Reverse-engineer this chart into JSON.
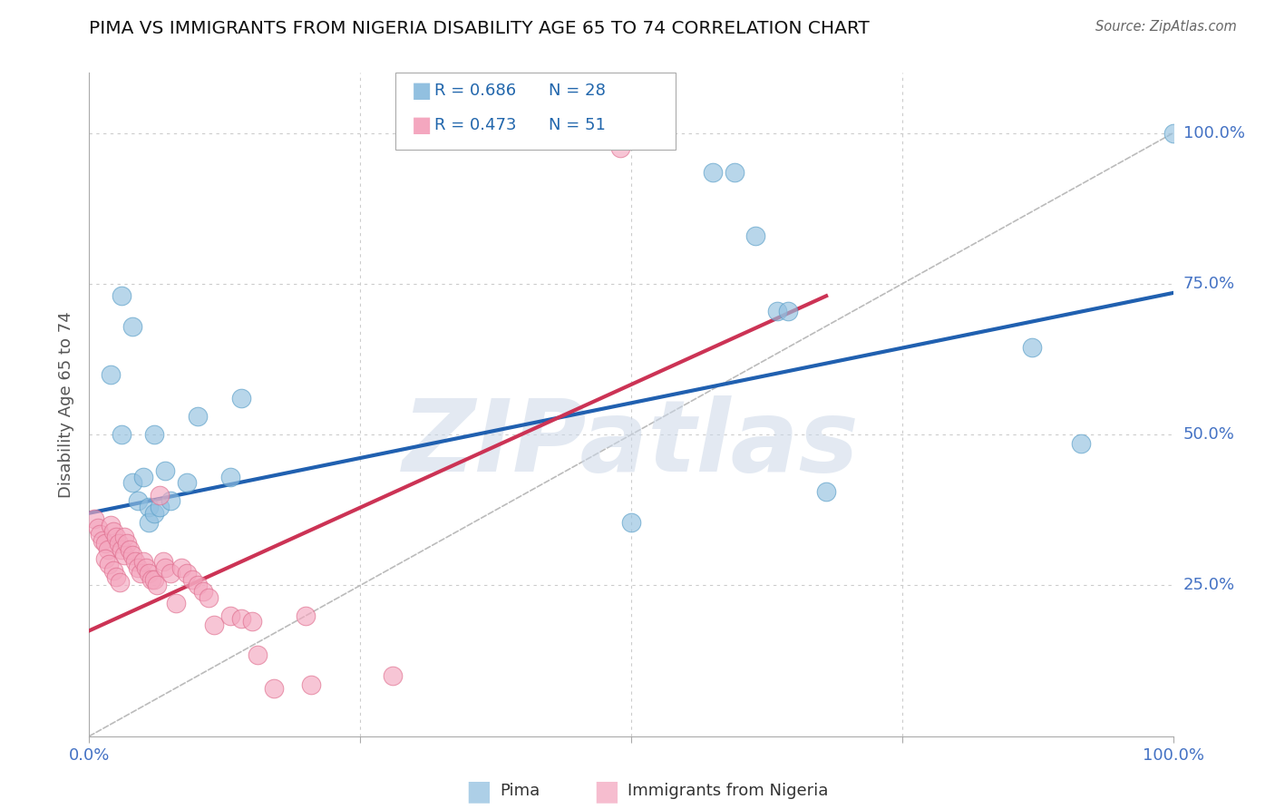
{
  "title": "PIMA VS IMMIGRANTS FROM NIGERIA DISABILITY AGE 65 TO 74 CORRELATION CHART",
  "source": "Source: ZipAtlas.com",
  "ylabel": "Disability Age 65 to 74",
  "watermark": "ZIPatlas",
  "legend_blue_R": "R = 0.686",
  "legend_blue_N": "N = 28",
  "legend_pink_R": "R = 0.473",
  "legend_pink_N": "N = 51",
  "blue_color": "#92c0e0",
  "blue_edge": "#5a9fc8",
  "pink_color": "#f4a7bf",
  "pink_edge": "#e07090",
  "blue_line_color": "#2060b0",
  "pink_line_color": "#cc3355",
  "diag_line_color": "#bbbbbb",
  "blue_points": [
    [
      0.02,
      0.6
    ],
    [
      0.03,
      0.73
    ],
    [
      0.04,
      0.68
    ],
    [
      0.04,
      0.42
    ],
    [
      0.045,
      0.39
    ],
    [
      0.05,
      0.43
    ],
    [
      0.055,
      0.38
    ],
    [
      0.055,
      0.355
    ],
    [
      0.06,
      0.37
    ],
    [
      0.065,
      0.38
    ],
    [
      0.07,
      0.44
    ],
    [
      0.075,
      0.39
    ],
    [
      0.09,
      0.42
    ],
    [
      0.1,
      0.53
    ],
    [
      0.13,
      0.43
    ],
    [
      0.14,
      0.56
    ],
    [
      0.5,
      0.355
    ],
    [
      0.575,
      0.935
    ],
    [
      0.595,
      0.935
    ],
    [
      0.615,
      0.83
    ],
    [
      0.635,
      0.705
    ],
    [
      0.645,
      0.705
    ],
    [
      0.68,
      0.405
    ],
    [
      0.87,
      0.645
    ],
    [
      0.915,
      0.485
    ],
    [
      1.0,
      1.0
    ],
    [
      0.03,
      0.5
    ],
    [
      0.06,
      0.5
    ]
  ],
  "pink_points": [
    [
      0.49,
      0.975
    ],
    [
      0.005,
      0.36
    ],
    [
      0.008,
      0.345
    ],
    [
      0.01,
      0.335
    ],
    [
      0.012,
      0.325
    ],
    [
      0.015,
      0.32
    ],
    [
      0.017,
      0.31
    ],
    [
      0.02,
      0.35
    ],
    [
      0.022,
      0.34
    ],
    [
      0.025,
      0.33
    ],
    [
      0.027,
      0.32
    ],
    [
      0.03,
      0.31
    ],
    [
      0.032,
      0.3
    ],
    [
      0.015,
      0.295
    ],
    [
      0.018,
      0.285
    ],
    [
      0.022,
      0.275
    ],
    [
      0.025,
      0.265
    ],
    [
      0.028,
      0.255
    ],
    [
      0.032,
      0.33
    ],
    [
      0.035,
      0.32
    ],
    [
      0.037,
      0.31
    ],
    [
      0.04,
      0.3
    ],
    [
      0.042,
      0.29
    ],
    [
      0.045,
      0.28
    ],
    [
      0.047,
      0.27
    ],
    [
      0.05,
      0.29
    ],
    [
      0.052,
      0.28
    ],
    [
      0.055,
      0.27
    ],
    [
      0.057,
      0.26
    ],
    [
      0.06,
      0.26
    ],
    [
      0.062,
      0.25
    ],
    [
      0.065,
      0.4
    ],
    [
      0.068,
      0.29
    ],
    [
      0.07,
      0.28
    ],
    [
      0.075,
      0.27
    ],
    [
      0.08,
      0.22
    ],
    [
      0.085,
      0.28
    ],
    [
      0.09,
      0.27
    ],
    [
      0.095,
      0.26
    ],
    [
      0.1,
      0.25
    ],
    [
      0.105,
      0.24
    ],
    [
      0.11,
      0.23
    ],
    [
      0.115,
      0.185
    ],
    [
      0.13,
      0.2
    ],
    [
      0.14,
      0.195
    ],
    [
      0.15,
      0.19
    ],
    [
      0.155,
      0.135
    ],
    [
      0.2,
      0.2
    ],
    [
      0.205,
      0.085
    ],
    [
      0.28,
      0.1
    ],
    [
      0.17,
      0.08
    ]
  ],
  "blue_line": {
    "x0": 0.0,
    "y0": 0.37,
    "x1": 1.0,
    "y1": 0.735
  },
  "pink_line": {
    "x0": 0.0,
    "y0": 0.175,
    "x1": 0.68,
    "y1": 0.73
  },
  "xlim": [
    0,
    1.0
  ],
  "ylim": [
    0,
    1.1
  ],
  "xticks": [
    0,
    0.25,
    0.5,
    0.75,
    1.0
  ],
  "xticklabels": [
    "0.0%",
    "",
    "",
    "",
    "100.0%"
  ],
  "ytick_vals": [
    0.25,
    0.5,
    0.75,
    1.0
  ],
  "ytick_labels": [
    "25.0%",
    "50.0%",
    "75.0%",
    "100.0%"
  ]
}
